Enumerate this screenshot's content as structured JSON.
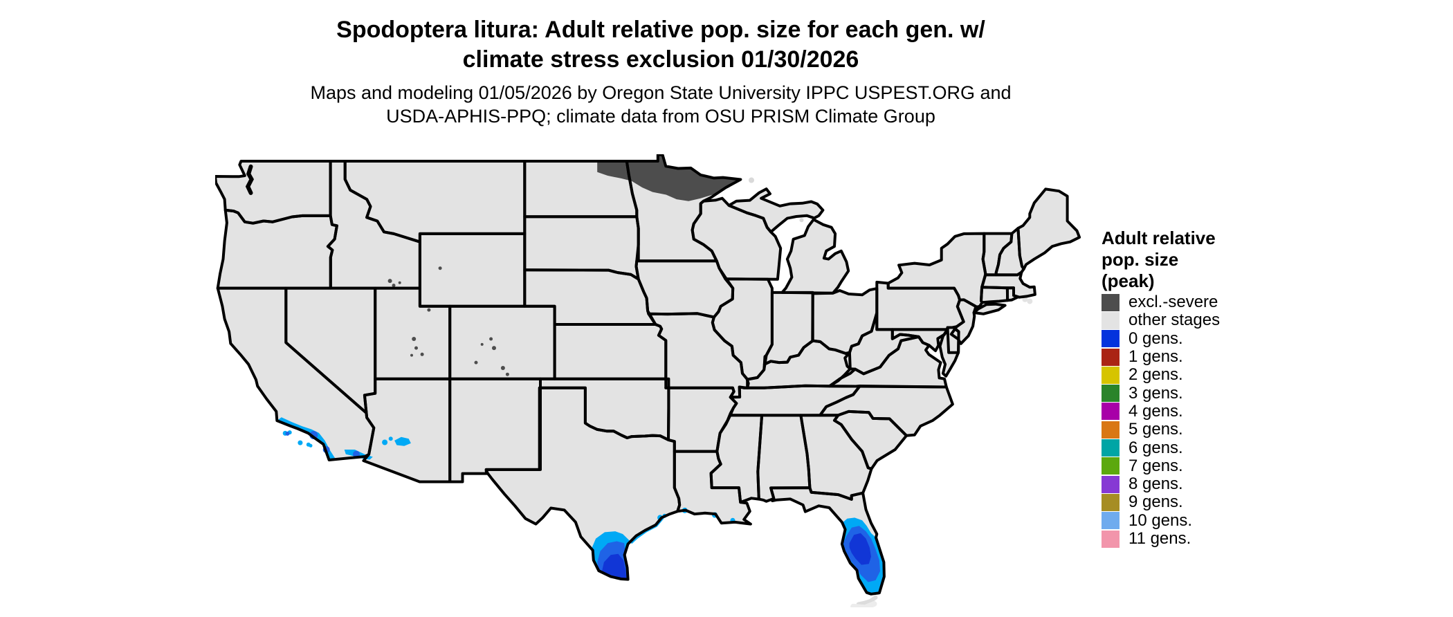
{
  "title": {
    "line1": "Spodoptera litura: Adult relative pop. size for each gen. w/",
    "line2": "climate stress exclusion 01/30/2026"
  },
  "subtitle": {
    "line1": "Maps and modeling 01/05/2026 by Oregon State University IPPC USPEST.ORG and",
    "line2": "USDA-APHIS-PPQ; climate data from OSU PRISM Climate Group"
  },
  "legend": {
    "title_lines": [
      "Adult relative",
      "pop. size",
      "(peak)"
    ],
    "entries": [
      {
        "label": "excl.-severe",
        "color": "#4d4d4d"
      },
      {
        "label": "other stages",
        "color": "#e3e3e3"
      },
      {
        "label": "0 gens.",
        "color": "#0433dd"
      },
      {
        "label": "1 gens.",
        "color": "#aa2414"
      },
      {
        "label": "2 gens.",
        "color": "#d6c400"
      },
      {
        "label": "3 gens.",
        "color": "#2a842a"
      },
      {
        "label": "4 gens.",
        "color": "#a800a8"
      },
      {
        "label": "5 gens.",
        "color": "#d97714"
      },
      {
        "label": "6 gens.",
        "color": "#00a5a5"
      },
      {
        "label": "7 gens.",
        "color": "#5ca80e"
      },
      {
        "label": "8 gens.",
        "color": "#8639d4"
      },
      {
        "label": "9 gens.",
        "color": "#a68d24"
      },
      {
        "label": "10 gens.",
        "color": "#6fabee"
      },
      {
        "label": "11 gens.",
        "color": "#f295ab"
      }
    ]
  },
  "map": {
    "background": "#ffffff",
    "state_fill": "#e3e3e3",
    "border_color": "#000000",
    "island_fill": "#d9d9d9",
    "keys_fill": "#dcdcdc",
    "overlay_colors": {
      "excl_severe": "#4d4d4d",
      "gen_cyan": "#00a9f5",
      "gen_mid": "#1f63e6",
      "gen_deep": "#1136d6"
    },
    "regions": [
      {
        "name": "northern-minnesota-northeastern-north-dakota",
        "value": "excl.-severe"
      },
      {
        "name": "rocky-mountain-high-peaks",
        "value": "excl.-severe"
      },
      {
        "name": "southern-coastal-california",
        "value": "blue generation shades"
      },
      {
        "name": "southwestern-arizona",
        "value": "blue generation shades"
      },
      {
        "name": "southern-texas",
        "value": "blue generation shades"
      },
      {
        "name": "central-southern-florida",
        "value": "blue generation shades"
      }
    ]
  }
}
